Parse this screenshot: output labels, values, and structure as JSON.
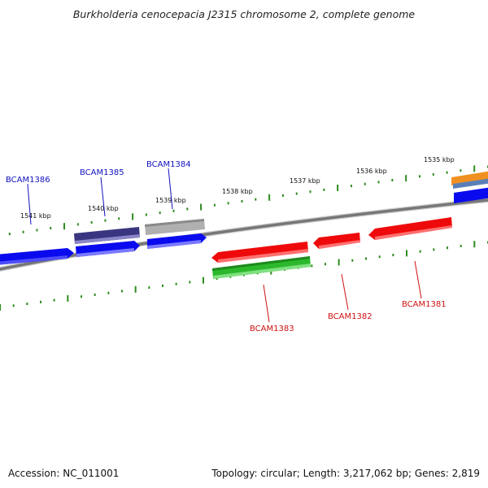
{
  "title": "Burkholderia cenocepacia J2315 chromosome 2, complete genome",
  "footer": {
    "accession": "Accession: NC_011001",
    "stats": "Topology: circular; Length: 3,217,062 bp; Genes: 2,819"
  },
  "colors": {
    "backbone": "#7a7a7a",
    "tick": "#2e8b1e",
    "gene_forward": "#0a0aee",
    "gene_reverse": "#ee0a0a",
    "gene_dark": "#3a3580",
    "gene_gray": "#b0b0b0",
    "gene_green": "#2cb82c",
    "gene_orange": "#f09020",
    "gene_steel": "#5a7fb8",
    "label_forward": "#1010c0",
    "label_reverse": "#d01010"
  },
  "kbp_labels": [
    "1535 kbp",
    "1536 kbp",
    "1537 kbp",
    "1538 kbp",
    "1539 kbp",
    "1540 kbp",
    "1541 kbp"
  ],
  "genes": [
    {
      "name": "BCAM1386",
      "strand": "forward"
    },
    {
      "name": "BCAM1385",
      "strand": "forward"
    },
    {
      "name": "BCAM1384",
      "strand": "forward"
    },
    {
      "name": "BCAM1383",
      "strand": "reverse"
    },
    {
      "name": "BCAM1382",
      "strand": "reverse"
    },
    {
      "name": "BCAM1381",
      "strand": "reverse"
    }
  ]
}
